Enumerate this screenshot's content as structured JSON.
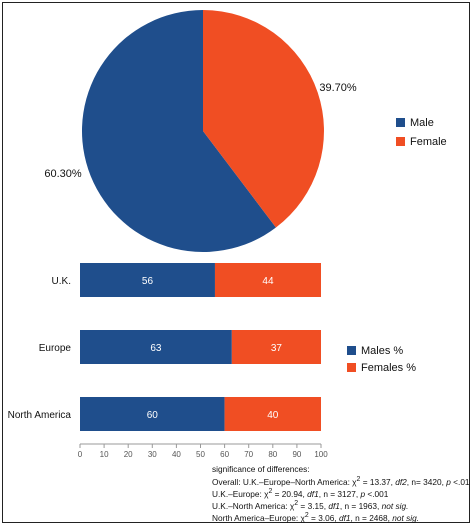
{
  "colors": {
    "male": "#1f4e8c",
    "female": "#f04e23"
  },
  "chart_data": [
    {
      "type": "pie",
      "slices": [
        {
          "label": "Male",
          "value": 60.3,
          "display": "60.30%"
        },
        {
          "label": "Female",
          "value": 39.7,
          "display": "39.70%"
        }
      ],
      "legend": [
        "Male",
        "Female"
      ],
      "legend_position": "right"
    },
    {
      "type": "bar",
      "orientation": "horizontal",
      "stacked": true,
      "categories": [
        "U.K.",
        "Europe",
        "North America"
      ],
      "series": [
        {
          "name": "Males %",
          "values": [
            56,
            63,
            60
          ]
        },
        {
          "name": "Females %",
          "values": [
            44,
            37,
            40
          ]
        }
      ],
      "xlim": [
        0,
        100
      ],
      "xticks": [
        0,
        10,
        20,
        30,
        40,
        50,
        60,
        70,
        80,
        90,
        100
      ],
      "legend_position": "right"
    }
  ],
  "notes": {
    "title": "significance of differences:",
    "lines": [
      {
        "prefix": "Overall: U.K.–Europe–North America: χ",
        "sup": "2",
        "stat": " = 13.37, ",
        "df": "df2",
        "n": ", n= 3420, ",
        "p_label": "p",
        "p_val": " <.01",
        "tail": ""
      },
      {
        "prefix": "U.K.–Europe: χ",
        "sup": "2",
        "stat": " = 20.94, ",
        "df": "df1",
        "n": ", n = 3127, ",
        "p_label": "p",
        "p_val": " <.001",
        "tail": ""
      },
      {
        "prefix": "U.K.–North America: χ",
        "sup": "2",
        "stat": " = 3.15, ",
        "df": "df1",
        "n": ", n = 1963, ",
        "p_label": "",
        "p_val": "",
        "tail": "not sig."
      },
      {
        "prefix": "North America–Europe: χ",
        "sup": "2",
        "stat": " = 3.06, ",
        "df": "df1",
        "n": ", n = 2468, ",
        "p_label": "",
        "p_val": "",
        "tail": "not sig."
      }
    ]
  }
}
